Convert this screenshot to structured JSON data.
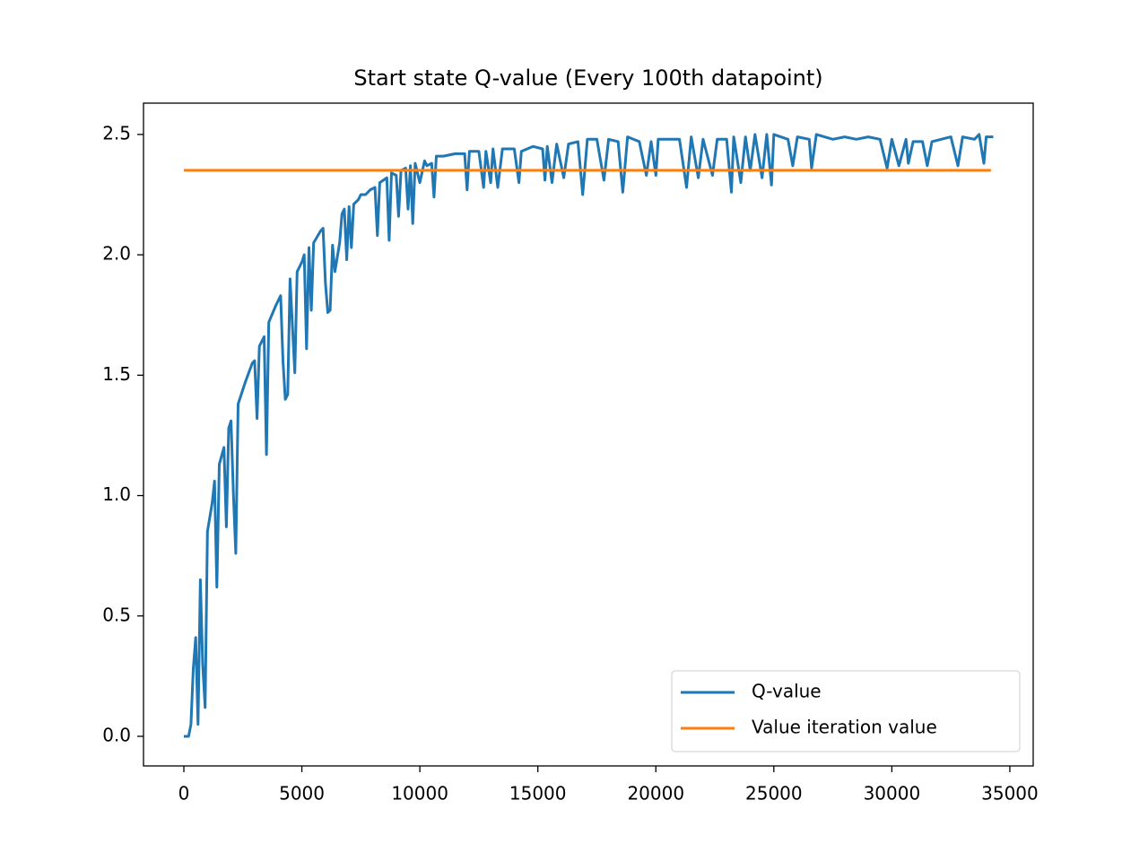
{
  "chart_data": {
    "type": "line",
    "title": "Start state Q-value (Every 100th datapoint)",
    "xlim": [
      -1710,
      35990
    ],
    "ylim": [
      -0.123,
      2.63
    ],
    "xticks": [
      0,
      5000,
      10000,
      15000,
      20000,
      25000,
      30000,
      35000
    ],
    "yticks": [
      {
        "value": 0,
        "label": "0.0"
      },
      0.5,
      {
        "value": 1,
        "label": "1.0"
      },
      1.5,
      {
        "value": 2,
        "label": "2.0"
      },
      2.5
    ],
    "legend": "lower right",
    "series": [
      {
        "name": "Q-value",
        "color": "#1f77b4",
        "x": [
          0,
          200,
          300,
          400,
          500,
          600,
          700,
          800,
          900,
          1000,
          1200,
          1300,
          1400,
          1500,
          1700,
          1800,
          1900,
          2000,
          2100,
          2200,
          2300,
          2600,
          2900,
          3000,
          3100,
          3200,
          3400,
          3500,
          3600,
          3900,
          4100,
          4200,
          4300,
          4400,
          4500,
          4700,
          4800,
          5000,
          5100,
          5200,
          5300,
          5400,
          5500,
          5800,
          5900,
          6000,
          6100,
          6200,
          6300,
          6400,
          6600,
          6700,
          6800,
          6900,
          7000,
          7100,
          7200,
          7400,
          7500,
          7700,
          7900,
          8100,
          8200,
          8300,
          8600,
          8700,
          8800,
          9000,
          9100,
          9200,
          9400,
          9500,
          9600,
          9700,
          9800,
          10000,
          10200,
          10300,
          10500,
          10600,
          10700,
          11000,
          11500,
          11900,
          12000,
          12100,
          12500,
          12700,
          12800,
          13000,
          13100,
          13300,
          13500,
          14000,
          14200,
          14300,
          14800,
          15200,
          15300,
          15400,
          15600,
          15800,
          16100,
          16300,
          16700,
          16900,
          17100,
          17500,
          17800,
          18000,
          18400,
          18600,
          18800,
          19300,
          19600,
          19800,
          20000,
          20100,
          20600,
          21000,
          21300,
          21500,
          21800,
          22000,
          22400,
          22600,
          23000,
          23200,
          23300,
          23600,
          23800,
          24000,
          24200,
          24500,
          24700,
          24900,
          25000,
          25600,
          25800,
          26000,
          26500,
          26600,
          26800,
          27500,
          28000,
          28500,
          29000,
          29500,
          29800,
          30000,
          30300,
          30600,
          30700,
          30900,
          31300,
          31500,
          31700,
          32500,
          32800,
          33000,
          33500,
          33700,
          33900,
          34000,
          34300
        ],
        "values": [
          0,
          0,
          0.05,
          0.28,
          0.41,
          0.05,
          0.65,
          0.3,
          0.12,
          0.85,
          0.97,
          1.06,
          0.62,
          1.13,
          1.2,
          0.87,
          1.28,
          1.31,
          1.0,
          0.76,
          1.38,
          1.47,
          1.55,
          1.56,
          1.32,
          1.62,
          1.66,
          1.17,
          1.72,
          1.79,
          1.83,
          1.56,
          1.4,
          1.42,
          1.9,
          1.51,
          1.93,
          1.97,
          2.0,
          1.61,
          2.03,
          1.77,
          2.05,
          2.1,
          2.11,
          1.88,
          1.76,
          1.77,
          2.04,
          1.93,
          2.05,
          2.17,
          2.19,
          1.98,
          2.2,
          2.03,
          2.21,
          2.23,
          2.25,
          2.25,
          2.27,
          2.28,
          2.08,
          2.3,
          2.32,
          2.06,
          2.34,
          2.33,
          2.16,
          2.35,
          2.36,
          2.19,
          2.37,
          2.13,
          2.38,
          2.3,
          2.39,
          2.37,
          2.38,
          2.24,
          2.41,
          2.41,
          2.42,
          2.42,
          2.27,
          2.43,
          2.43,
          2.28,
          2.43,
          2.3,
          2.44,
          2.28,
          2.44,
          2.44,
          2.3,
          2.43,
          2.45,
          2.44,
          2.31,
          2.45,
          2.3,
          2.46,
          2.32,
          2.46,
          2.47,
          2.25,
          2.48,
          2.48,
          2.31,
          2.48,
          2.47,
          2.26,
          2.49,
          2.47,
          2.33,
          2.47,
          2.33,
          2.48,
          2.48,
          2.48,
          2.28,
          2.49,
          2.32,
          2.48,
          2.33,
          2.48,
          2.48,
          2.26,
          2.49,
          2.3,
          2.49,
          2.35,
          2.5,
          2.32,
          2.5,
          2.29,
          2.5,
          2.48,
          2.37,
          2.49,
          2.48,
          2.36,
          2.5,
          2.48,
          2.49,
          2.48,
          2.49,
          2.48,
          2.36,
          2.48,
          2.37,
          2.48,
          2.38,
          2.47,
          2.47,
          2.37,
          2.47,
          2.49,
          2.37,
          2.49,
          2.48,
          2.5,
          2.38,
          2.49,
          2.49
        ]
      },
      {
        "name": "Value iteration value",
        "color": "#ff7f0e",
        "x": [
          0,
          34200
        ],
        "values": [
          2.351,
          2.351
        ]
      }
    ]
  }
}
